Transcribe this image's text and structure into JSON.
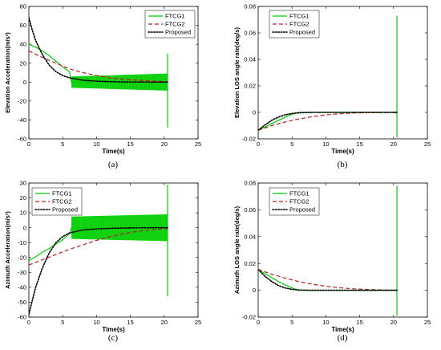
{
  "chart_data": [
    {
      "type": "line",
      "caption": "(a)",
      "xlabel": "Time(s)",
      "ylabel": "Elevation Acceleration(m/s²)",
      "xlim": [
        0,
        25
      ],
      "ylim": [
        -60,
        80
      ],
      "xticks": [
        "0",
        "5",
        "10",
        "15",
        "20",
        "25"
      ],
      "yticks": [
        "-60",
        "-40",
        "-20",
        "0",
        "20",
        "40",
        "60",
        "80"
      ],
      "legend": "top-right",
      "series": [
        {
          "name": "FTCG1",
          "color": "#00cc00",
          "dash": "solid",
          "x": [
            0,
            1,
            2,
            3,
            4,
            5,
            6,
            6.3,
            8,
            10,
            12,
            14,
            16,
            18,
            20,
            20.5
          ],
          "y": [
            40,
            37,
            33,
            28,
            22,
            16,
            11,
            0,
            0,
            0,
            0,
            0,
            0,
            0,
            0,
            0
          ],
          "band": {
            "x": [
              6.3,
              20.4
            ],
            "low": [
              -6,
              -9
            ],
            "high": [
              6,
              9
            ]
          },
          "spike": {
            "x": 20.5,
            "low": -48,
            "high": 30
          }
        },
        {
          "name": "FTCG2",
          "color": "#b22222",
          "dash": "dashed",
          "x": [
            0,
            2,
            4,
            6,
            8,
            10,
            12,
            14,
            16,
            18,
            20.5
          ],
          "y": [
            33,
            26,
            20,
            14,
            10,
            7,
            4.5,
            3,
            2,
            1.2,
            0.5
          ]
        },
        {
          "name": "Proposed",
          "color": "#000000",
          "dash": "dotted",
          "x": [
            0,
            0.5,
            1,
            2,
            3,
            4,
            5,
            6,
            8,
            10,
            12,
            14,
            16,
            18,
            20.5
          ],
          "y": [
            68,
            55,
            44,
            29,
            18,
            11,
            7,
            4.5,
            2,
            1,
            0.5,
            0.2,
            0.1,
            0,
            0
          ]
        }
      ]
    },
    {
      "type": "line",
      "caption": "(b)",
      "xlabel": "Time(s)",
      "ylabel": "Elevation LOS angle rate(deg/s)",
      "xlim": [
        0,
        25
      ],
      "ylim": [
        -0.02,
        0.08
      ],
      "xticks": [
        "0",
        "5",
        "10",
        "15",
        "20",
        "25"
      ],
      "yticks": [
        "-0.02",
        "0",
        "0.02",
        "0.04",
        "0.06",
        "0.08"
      ],
      "legend": "top-right",
      "series": [
        {
          "name": "FTCG1",
          "color": "#00cc00",
          "dash": "solid",
          "x": [
            0,
            1,
            2,
            3,
            4,
            5,
            6,
            8,
            10,
            12,
            14,
            16,
            18,
            20,
            20.3
          ],
          "y": [
            -0.0135,
            -0.011,
            -0.0085,
            -0.006,
            -0.0035,
            -0.0015,
            0,
            0,
            0,
            0,
            0,
            0,
            0,
            0,
            0
          ],
          "band": {
            "x": [
              20.1,
              20.6
            ],
            "low": [
              -0.0005,
              -0.0005
            ],
            "high": [
              0.0005,
              0.0005
            ]
          },
          "spike": {
            "x": 20.5,
            "low": -0.019,
            "high": 0.073
          }
        },
        {
          "name": "FTCG2",
          "color": "#b22222",
          "dash": "dashed",
          "x": [
            0,
            2,
            4,
            6,
            8,
            10,
            12,
            14,
            16,
            18,
            20.5
          ],
          "y": [
            -0.0135,
            -0.01,
            -0.0072,
            -0.005,
            -0.0032,
            -0.0019,
            -0.001,
            -0.0005,
            -0.0002,
            -0.0001,
            0
          ]
        },
        {
          "name": "Proposed",
          "color": "#000000",
          "dash": "dotted",
          "x": [
            0,
            1,
            2,
            3,
            4,
            5,
            6,
            8,
            10,
            12,
            14,
            16,
            18,
            20.5
          ],
          "y": [
            -0.0135,
            -0.0095,
            -0.006,
            -0.0035,
            -0.0018,
            -0.0008,
            -0.0003,
            0,
            0,
            0,
            0,
            0,
            0,
            0
          ]
        }
      ]
    },
    {
      "type": "line",
      "caption": "(c)",
      "xlabel": "Time(s)",
      "ylabel": "Azimuth Acceleration(m/s²)",
      "xlim": [
        0,
        25
      ],
      "ylim": [
        -60,
        30
      ],
      "xticks": [
        "0",
        "5",
        "10",
        "15",
        "20",
        "25"
      ],
      "yticks": [
        "-60",
        "-50",
        "-40",
        "-30",
        "-20",
        "-10",
        "0",
        "10",
        "20",
        "30"
      ],
      "legend": "top-left",
      "series": [
        {
          "name": "FTCG1",
          "color": "#00cc00",
          "dash": "solid",
          "x": [
            0,
            1,
            2,
            3,
            4,
            5,
            6,
            6.3,
            8,
            10,
            12,
            14,
            16,
            18,
            20,
            20.5
          ],
          "y": [
            -22,
            -19.5,
            -16.5,
            -14,
            -11,
            -8,
            -4,
            0,
            0,
            0,
            0,
            0,
            0,
            0,
            0,
            0
          ],
          "band": {
            "x": [
              6.3,
              20.4
            ],
            "low": [
              -7.5,
              -9
            ],
            "high": [
              7.5,
              9
            ]
          },
          "spike": {
            "x": 20.5,
            "low": -46,
            "high": 29
          }
        },
        {
          "name": "FTCG2",
          "color": "#b22222",
          "dash": "dashed",
          "x": [
            0,
            2,
            4,
            6,
            8,
            10,
            12,
            14,
            16,
            18,
            20.5
          ],
          "y": [
            -25,
            -21.5,
            -18,
            -14.5,
            -11.5,
            -8.5,
            -6,
            -4,
            -2.5,
            -1.5,
            -0.5
          ]
        },
        {
          "name": "Proposed",
          "color": "#000000",
          "dash": "dotted",
          "x": [
            0,
            0.5,
            1,
            2,
            3,
            4,
            5,
            6,
            8,
            10,
            12,
            14,
            16,
            18,
            20.5
          ],
          "y": [
            -58,
            -49,
            -40,
            -27,
            -17,
            -10,
            -6,
            -3.5,
            -1.5,
            -0.8,
            -0.4,
            -0.2,
            -0.1,
            0,
            0
          ]
        }
      ]
    },
    {
      "type": "line",
      "caption": "(d)",
      "xlabel": "Time(s)",
      "ylabel": "Azimuth LOS angle rate(deg/s)",
      "xlim": [
        0,
        25
      ],
      "ylim": [
        -0.02,
        0.08
      ],
      "xticks": [
        "0",
        "5",
        "10",
        "15",
        "20",
        "25"
      ],
      "yticks": [
        "-0.02",
        "0",
        "0.02",
        "0.04",
        "0.06",
        "0.08"
      ],
      "legend": "top-right",
      "series": [
        {
          "name": "FTCG1",
          "color": "#00cc00",
          "dash": "solid",
          "x": [
            0,
            1,
            2,
            3,
            4,
            5,
            6,
            8,
            10,
            12,
            14,
            16,
            18,
            20,
            20.3
          ],
          "y": [
            0.0155,
            0.0125,
            0.0095,
            0.0065,
            0.004,
            0.0018,
            0,
            0,
            0,
            0,
            0,
            0,
            0,
            0,
            0
          ],
          "band": {
            "x": [
              20.1,
              20.6
            ],
            "low": [
              -0.0005,
              -0.0005
            ],
            "high": [
              0.0005,
              0.0005
            ]
          },
          "spike": {
            "x": 20.5,
            "low": -0.019,
            "high": 0.078
          }
        },
        {
          "name": "FTCG2",
          "color": "#b22222",
          "dash": "dashed",
          "x": [
            0,
            2,
            4,
            6,
            8,
            10,
            12,
            14,
            16,
            18,
            20.5
          ],
          "y": [
            0.0155,
            0.012,
            0.009,
            0.0065,
            0.0045,
            0.003,
            0.0019,
            0.0011,
            0.0006,
            0.0003,
            0
          ]
        },
        {
          "name": "Proposed",
          "color": "#000000",
          "dash": "dotted",
          "x": [
            0,
            1,
            2,
            3,
            4,
            5,
            6,
            8,
            10,
            12,
            14,
            16,
            18,
            20.5
          ],
          "y": [
            0.0155,
            0.0105,
            0.0065,
            0.0035,
            0.0017,
            0.0007,
            0.0002,
            0,
            0,
            0,
            0,
            0,
            0,
            0
          ]
        }
      ]
    }
  ]
}
